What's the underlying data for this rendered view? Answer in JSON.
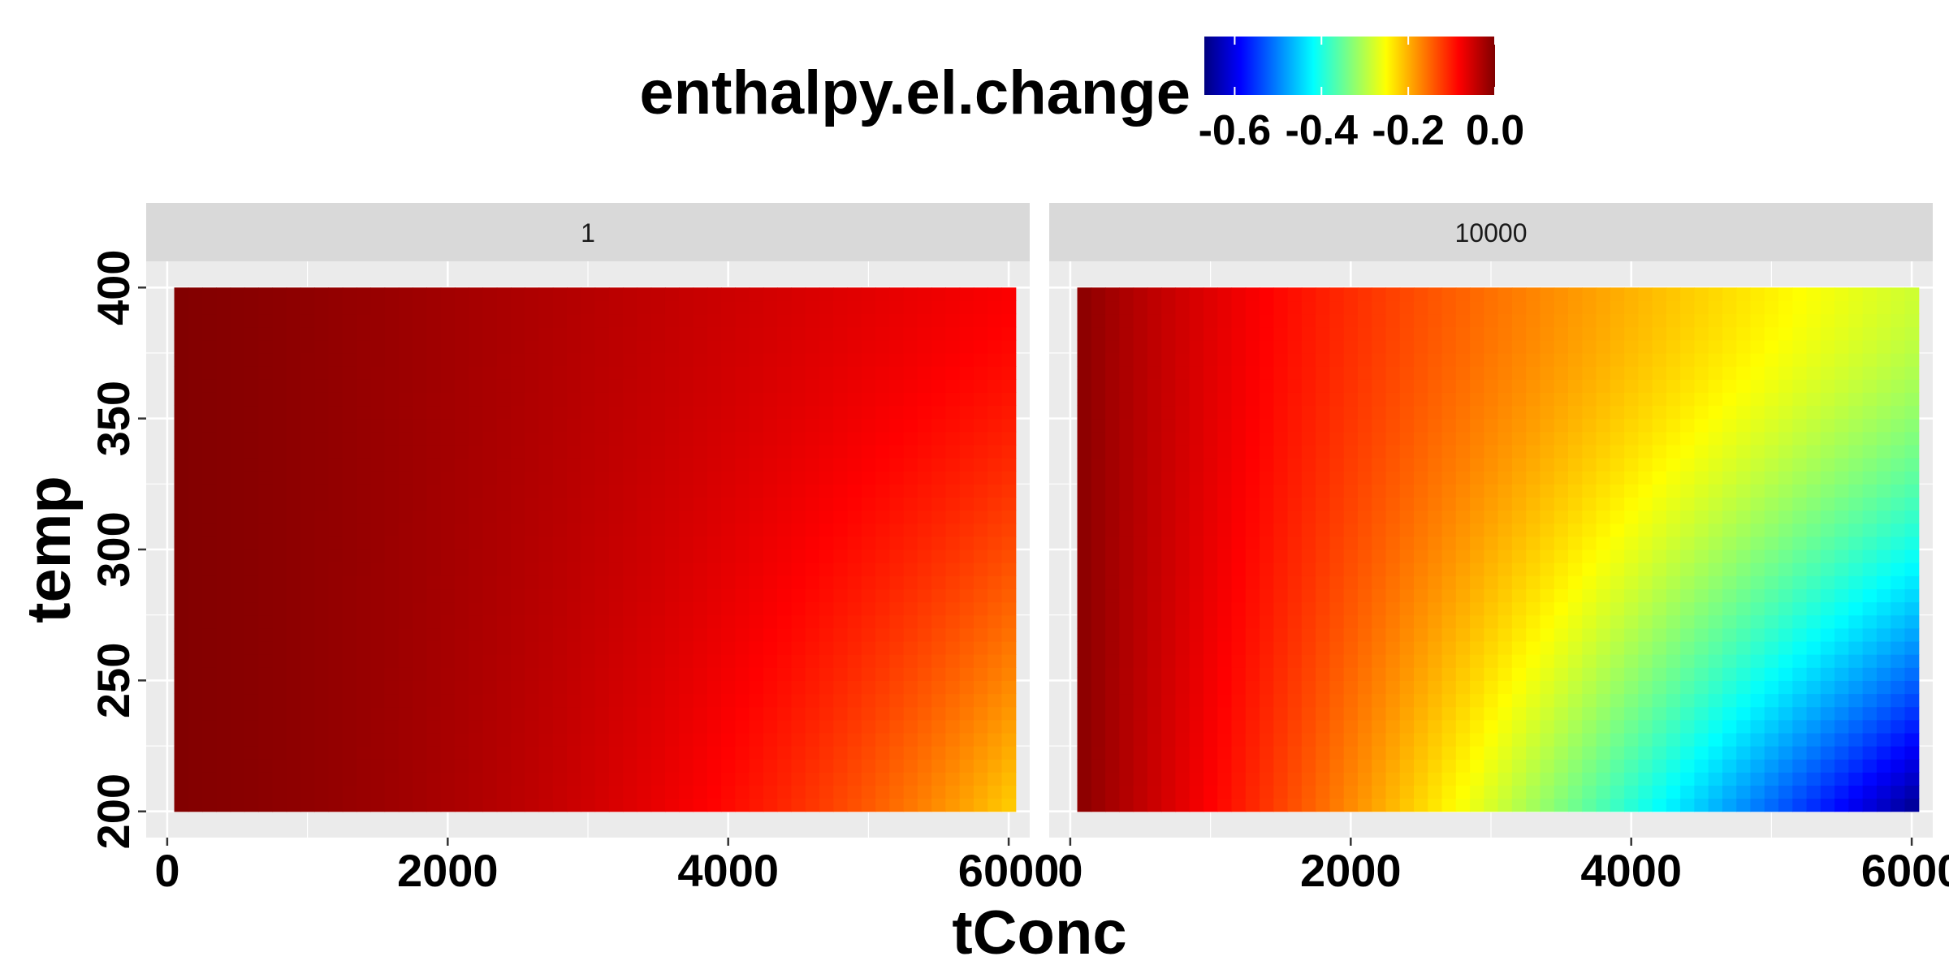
{
  "chart_data": {
    "type": "heatmap",
    "title": "",
    "xlabel": "tConc",
    "ylabel": "temp",
    "legend": {
      "title": "enthalpy.el.change",
      "position": "top",
      "ticks": [
        -0.6,
        -0.4,
        -0.2,
        0.0
      ],
      "tick_labels": [
        "-0.6",
        "-0.4",
        "-0.2",
        "0.0"
      ],
      "range": [
        -0.67,
        0.0
      ],
      "colors": [
        "#00007F",
        "#0000FF",
        "#007FFF",
        "#00FFFF",
        "#7FFF7F",
        "#FFFF00",
        "#FF7F00",
        "#FF0000",
        "#7F0000"
      ]
    },
    "xlim": [
      -150,
      6150
    ],
    "ylim": [
      190,
      410
    ],
    "x_ticks": [
      0,
      2000,
      4000,
      6000
    ],
    "x_tick_labels": [
      "0",
      "2000",
      "4000",
      "6000"
    ],
    "y_ticks": [
      200,
      250,
      300,
      350,
      400
    ],
    "y_tick_labels": [
      "200",
      "250",
      "300",
      "350",
      "400"
    ],
    "x_range": [
      50,
      6050
    ],
    "y_range": [
      200,
      400
    ],
    "grid": true,
    "facets": [
      {
        "label": "1",
        "value_samples": [
          {
            "tConc": 50,
            "temp": 200,
            "value": -0.005
          },
          {
            "tConc": 50,
            "temp": 400,
            "value": -0.002
          },
          {
            "tConc": 3000,
            "temp": 400,
            "value": -0.06
          },
          {
            "tConc": 3000,
            "temp": 200,
            "value": -0.09
          },
          {
            "tConc": 6050,
            "temp": 400,
            "value": -0.11
          },
          {
            "tConc": 6050,
            "temp": 300,
            "value": -0.14
          },
          {
            "tConc": 6050,
            "temp": 200,
            "value": -0.22
          }
        ]
      },
      {
        "label": "10000",
        "value_samples": [
          {
            "tConc": 50,
            "temp": 200,
            "value": -0.01
          },
          {
            "tConc": 50,
            "temp": 400,
            "value": -0.005
          },
          {
            "tConc": 2000,
            "temp": 200,
            "value": -0.2
          },
          {
            "tConc": 3000,
            "temp": 400,
            "value": -0.17
          },
          {
            "tConc": 6050,
            "temp": 400,
            "value": -0.27
          },
          {
            "tConc": 6050,
            "temp": 300,
            "value": -0.38
          },
          {
            "tConc": 6050,
            "temp": 200,
            "value": -0.67
          }
        ]
      }
    ]
  }
}
